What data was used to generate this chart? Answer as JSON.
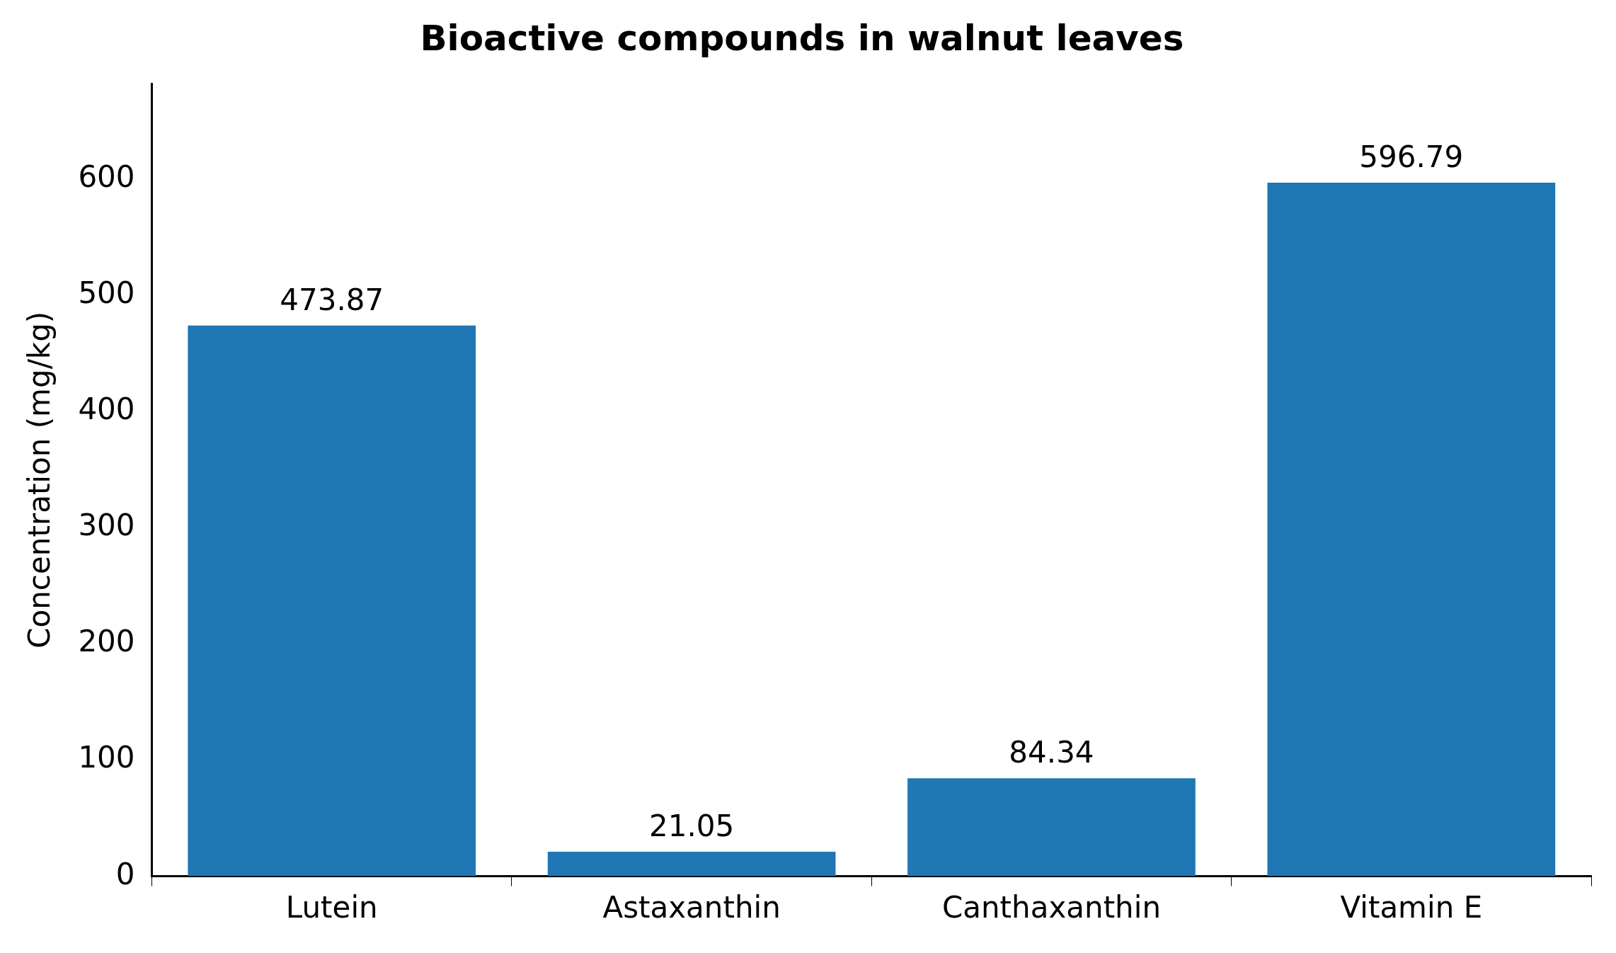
{
  "chart_data": {
    "type": "bar",
    "title": "Bioactive compounds in walnut leaves",
    "ylabel": "Concentration (mg/kg)",
    "categories": [
      "Lutein",
      "Astaxanthin",
      "Canthaxanthin",
      "Vitamin E"
    ],
    "values": [
      473.87,
      21.05,
      84.34,
      596.79
    ],
    "color": "#1f77b4",
    "ylim": [
      0,
      682
    ],
    "yticks": [
      0,
      100,
      200,
      300,
      400,
      500,
      600
    ],
    "grid": false,
    "data_labels": true
  }
}
